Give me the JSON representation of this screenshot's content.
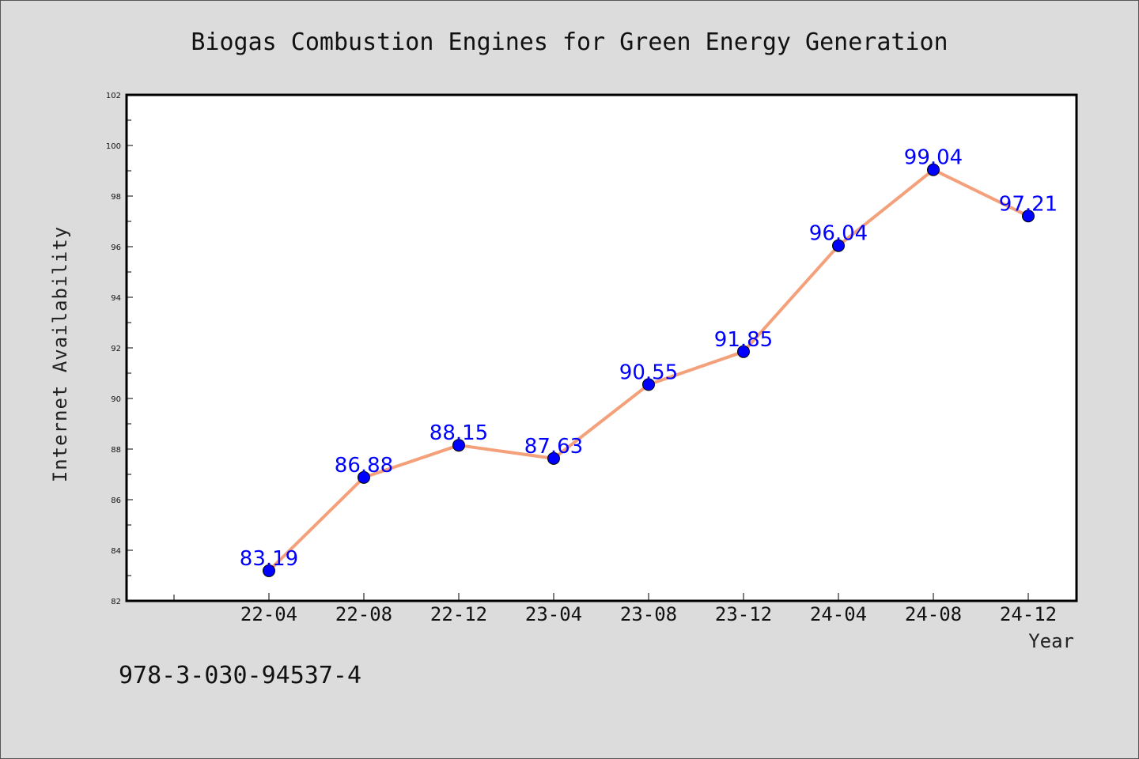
{
  "chart_data": {
    "type": "line",
    "title": "Biogas Combustion Engines for Green Energy Generation",
    "xlabel": "Year",
    "ylabel": "Internet Availability",
    "categories": [
      "22-04",
      "22-08",
      "22-12",
      "23-04",
      "23-08",
      "23-12",
      "24-04",
      "24-08",
      "24-12"
    ],
    "series": [
      {
        "values": [
          83.19,
          86.88,
          88.15,
          87.63,
          90.55,
          91.85,
          96.04,
          99.04,
          97.21
        ],
        "labels": [
          "83.19",
          "86.88",
          "88.15",
          "87.63",
          "90.55",
          "91.85",
          "96.04",
          "99.04",
          "97.21"
        ],
        "line_color": "#f4a07a",
        "marker_color": "#0000ff"
      }
    ],
    "ylim": [
      82,
      102
    ],
    "yticks": [
      "82",
      "84",
      "86",
      "88",
      "90",
      "92",
      "94",
      "96",
      "98",
      "100",
      "102"
    ],
    "grid": false,
    "legend": "none"
  },
  "footer_text": "978-3-030-94537-4"
}
